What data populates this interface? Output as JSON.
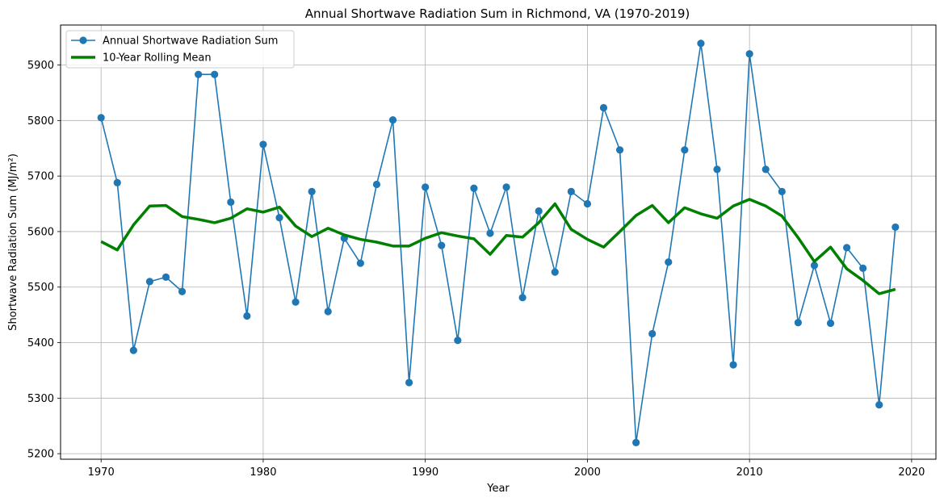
{
  "chart_data": {
    "type": "line",
    "title": "Annual Shortwave Radiation Sum in Richmond, VA (1970-2019)",
    "xlabel": "Year",
    "ylabel": "Shortwave Radiation Sum (MJ/m²)",
    "xlim": [
      1967.5,
      2021.5
    ],
    "ylim": [
      5190,
      5972
    ],
    "xticks": [
      1970,
      1980,
      1990,
      2000,
      2010,
      2020
    ],
    "yticks": [
      5200,
      5300,
      5400,
      5500,
      5600,
      5700,
      5800,
      5900
    ],
    "grid": true,
    "legend_position": "top-left",
    "x": [
      1970,
      1971,
      1972,
      1973,
      1974,
      1975,
      1976,
      1977,
      1978,
      1979,
      1980,
      1981,
      1982,
      1983,
      1984,
      1985,
      1986,
      1987,
      1988,
      1989,
      1990,
      1991,
      1992,
      1993,
      1994,
      1995,
      1996,
      1997,
      1998,
      1999,
      2000,
      2001,
      2002,
      2003,
      2004,
      2005,
      2006,
      2007,
      2008,
      2009,
      2010,
      2011,
      2012,
      2013,
      2014,
      2015,
      2016,
      2017,
      2018,
      2019
    ],
    "series": [
      {
        "name": "Annual Shortwave Radiation Sum",
        "color": "#1f77b4",
        "style": "line-marker",
        "values": [
          5805,
          5688,
          5386,
          5510,
          5518,
          5492,
          5883,
          5883,
          5653,
          5448,
          5757,
          5625,
          5473,
          5672,
          5456,
          5588,
          5543,
          5685,
          5801,
          5328,
          5680,
          5575,
          5404,
          5678,
          5597,
          5680,
          5481,
          5637,
          5527,
          5672,
          5650,
          5823,
          5747,
          5220,
          5416,
          5545,
          5747,
          5939,
          5712,
          5360,
          5920,
          5712,
          5672,
          5436,
          5539,
          5435,
          5571,
          5534,
          5288,
          5608
        ]
      },
      {
        "name": "10-Year Rolling Mean",
        "color": "#008000",
        "style": "line",
        "values": [
          5582,
          5567,
          5612,
          5646,
          5647,
          5627,
          5622,
          5616,
          5624,
          5641,
          5635,
          5644,
          5610,
          5591,
          5606,
          5594,
          5586,
          5581,
          5574,
          5574,
          5588,
          5598,
          5592,
          5587,
          5559,
          5593,
          5590,
          5616,
          5650,
          5604,
          5586,
          5572,
          5600,
          5629,
          5647,
          5616,
          5643,
          5632,
          5624,
          5646,
          5658,
          5646,
          5628,
          5589,
          5546,
          5572,
          5533,
          5512,
          5488,
          5496
        ]
      }
    ]
  }
}
